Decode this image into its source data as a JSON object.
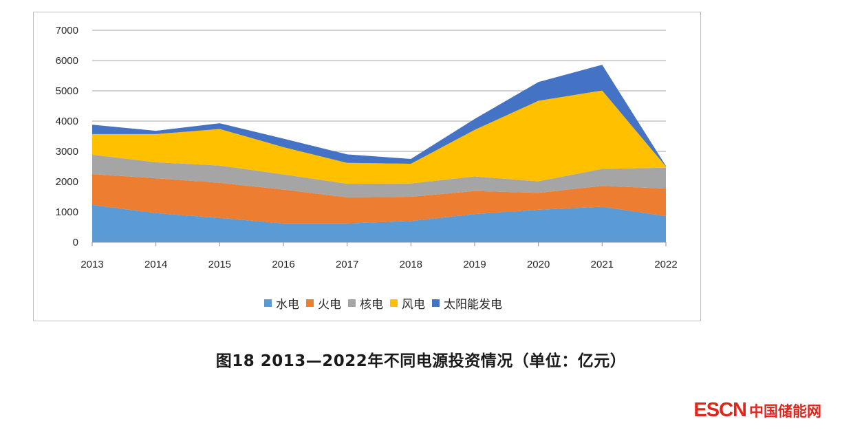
{
  "chart_data": {
    "type": "area",
    "stacked": true,
    "title": "图18  2013—2022年不同电源投资情况（单位：亿元）",
    "xlabel": "",
    "ylabel": "",
    "categories": [
      "2013",
      "2014",
      "2015",
      "2016",
      "2017",
      "2018",
      "2019",
      "2020",
      "2021",
      "2022"
    ],
    "ylim": [
      0,
      7000
    ],
    "yticks": [
      "0",
      "1000",
      "2000",
      "3000",
      "4000",
      "5000",
      "6000",
      "7000"
    ],
    "grid": true,
    "legend_position": "bottom",
    "series": [
      {
        "name": "水电",
        "color": "#5b9bd5",
        "values": [
          1230,
          960,
          800,
          620,
          620,
          700,
          930,
          1070,
          1170,
          860
        ]
      },
      {
        "name": "火电",
        "color": "#ed7d31",
        "values": [
          1020,
          1150,
          1160,
          1120,
          860,
          800,
          760,
          560,
          690,
          910
        ]
      },
      {
        "name": "核电",
        "color": "#a5a5a5",
        "values": [
          640,
          530,
          570,
          500,
          450,
          440,
          480,
          380,
          560,
          690
        ]
      },
      {
        "name": "风电",
        "color": "#ffc000",
        "values": [
          680,
          930,
          1210,
          900,
          690,
          650,
          1540,
          2660,
          2590,
          40
        ]
      },
      {
        "name": "太阳能发电",
        "color": "#4472c4",
        "values": [
          310,
          110,
          190,
          280,
          280,
          160,
          360,
          620,
          850,
          20
        ]
      }
    ]
  },
  "caption": "图18  2013—2022年不同电源投资情况（单位：亿元）",
  "watermark": {
    "brand": "ESCN",
    "site": "中国储能网"
  }
}
